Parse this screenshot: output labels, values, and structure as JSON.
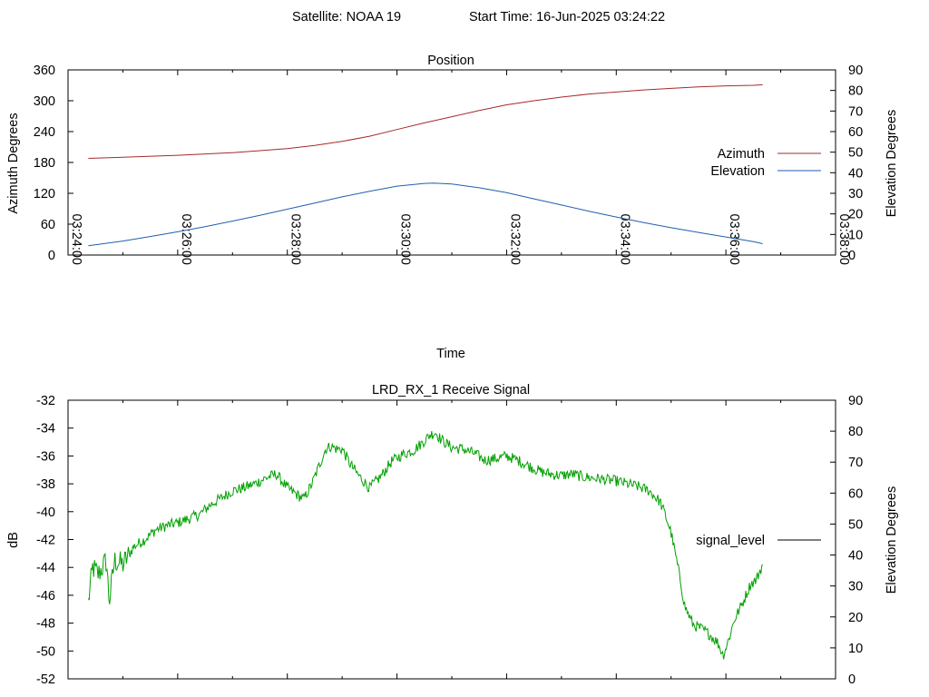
{
  "header": {
    "satellite_label": "Satellite: NOAA 19",
    "start_time_label": "Start Time: 16-Jun-2025 03:24:22"
  },
  "colors": {
    "azimuth": "#a52a2a",
    "elevation": "#1f5fb0",
    "signal": "#00a000",
    "signal_legend_sample": "#000000",
    "frame": "#000000"
  },
  "chart_data": [
    {
      "type": "line",
      "title": "Position",
      "xlabel": "Time",
      "ylabel": "Azimuth Degrees",
      "y2label": "Elevation Degrees",
      "grid": false,
      "legend_position": "right",
      "xlim_minutes": [
        24,
        38
      ],
      "ylim": [
        0,
        360
      ],
      "y2lim": [
        0,
        90
      ],
      "x_tick_minutes": [
        24,
        26,
        28,
        30,
        32,
        34,
        36,
        38
      ],
      "x_ticks": [
        "03:24:00",
        "03:26:00",
        "03:28:00",
        "03:30:00",
        "03:32:00",
        "03:34:00",
        "03:36:00",
        "03:38:00"
      ],
      "y_ticks": [
        "0",
        "60",
        "120",
        "180",
        "240",
        "300",
        "360"
      ],
      "y2_ticks": [
        "0",
        "10",
        "20",
        "30",
        "40",
        "50",
        "60",
        "70",
        "80",
        "90"
      ],
      "series": [
        {
          "name": "Azimuth",
          "axis": "y",
          "x_minutes": [
            24.37,
            25,
            26,
            27,
            28,
            28.5,
            29,
            29.5,
            30,
            30.5,
            31,
            31.5,
            32,
            32.5,
            33,
            33.5,
            34,
            34.5,
            35,
            35.5,
            36,
            36.5,
            36.67
          ],
          "values": [
            188,
            190,
            194,
            199,
            207,
            213,
            221,
            231,
            244,
            257,
            269,
            281,
            292,
            300,
            307,
            313,
            317,
            321,
            324,
            327,
            329,
            330,
            331
          ]
        },
        {
          "name": "Elevation",
          "axis": "y2",
          "x_minutes": [
            24.37,
            25,
            25.5,
            26,
            26.5,
            27,
            27.5,
            28,
            28.5,
            29,
            29.5,
            30,
            30.5,
            30.67,
            31,
            31.5,
            32,
            32.5,
            33,
            33.5,
            34,
            34.5,
            35,
            35.5,
            36,
            36.5,
            36.67
          ],
          "values": [
            4.5,
            6.8,
            9,
            11.3,
            13.8,
            16.5,
            19.3,
            22.3,
            25.3,
            28.3,
            31,
            33.5,
            34.8,
            35,
            34.5,
            32.7,
            30.3,
            27.3,
            24.3,
            21.3,
            18.5,
            15.8,
            13.3,
            11,
            8.8,
            6.5,
            5.5
          ]
        }
      ]
    },
    {
      "type": "line",
      "title": "LRD_RX_1 Receive Signal",
      "xlabel": "",
      "ylabel": "dB",
      "y2label": "Elevation Degrees",
      "grid": false,
      "legend_position": "right",
      "xlim_minutes": [
        24,
        38
      ],
      "ylim": [
        -52,
        -32
      ],
      "y2lim": [
        0,
        90
      ],
      "y_ticks": [
        "-32",
        "-34",
        "-36",
        "-38",
        "-40",
        "-42",
        "-44",
        "-46",
        "-48",
        "-50",
        "-52"
      ],
      "y2_ticks": [
        "0",
        "10",
        "20",
        "30",
        "40",
        "50",
        "60",
        "70",
        "80",
        "90"
      ],
      "series": [
        {
          "name": "signal_level",
          "axis": "y",
          "x_minutes": [
            24.37,
            24.45,
            24.55,
            24.7,
            24.75,
            24.85,
            25,
            25.2,
            25.4,
            25.6,
            25.8,
            26,
            26.2,
            26.4,
            26.6,
            26.8,
            27,
            27.2,
            27.4,
            27.6,
            27.8,
            27.9,
            28,
            28.15,
            28.3,
            28.45,
            28.55,
            28.7,
            28.8,
            28.9,
            29,
            29.15,
            29.3,
            29.5,
            29.7,
            29.9,
            30.1,
            30.3,
            30.45,
            30.6,
            30.7,
            30.8,
            31,
            31.2,
            31.4,
            31.6,
            31.8,
            32,
            32.2,
            32.4,
            32.6,
            32.8,
            33,
            33.2,
            33.4,
            33.6,
            33.8,
            34,
            34.2,
            34.4,
            34.6,
            34.8,
            34.9,
            35,
            35.15,
            35.25,
            35.4,
            35.55,
            35.7,
            35.85,
            35.95,
            36.05,
            36.15,
            36.3,
            36.45,
            36.55,
            36.67
          ],
          "values": [
            -46.5,
            -44,
            -44.5,
            -43.5,
            -46.5,
            -43.5,
            -43.8,
            -42.5,
            -42,
            -41.3,
            -41,
            -40.8,
            -40.5,
            -40.2,
            -39.5,
            -39,
            -38.5,
            -38.3,
            -38,
            -37.6,
            -37.3,
            -37.8,
            -38.3,
            -38.7,
            -39.1,
            -38,
            -37,
            -35.5,
            -35.3,
            -35.5,
            -35.5,
            -36.6,
            -37.4,
            -38.3,
            -37.5,
            -36.4,
            -35.9,
            -35.6,
            -35.1,
            -34.5,
            -34.3,
            -34.8,
            -35.4,
            -35.5,
            -35.8,
            -36.3,
            -36.2,
            -36.0,
            -36.3,
            -36.7,
            -37.1,
            -37.3,
            -37.4,
            -37.3,
            -37.5,
            -37.6,
            -37.7,
            -37.8,
            -38.0,
            -38.2,
            -38.5,
            -39.3,
            -40.3,
            -41.5,
            -44.5,
            -46.8,
            -48.1,
            -48.4,
            -48.8,
            -49.4,
            -50.3,
            -49.2,
            -47.8,
            -46.6,
            -45.2,
            -44.9,
            -43.8
          ]
        }
      ]
    }
  ]
}
